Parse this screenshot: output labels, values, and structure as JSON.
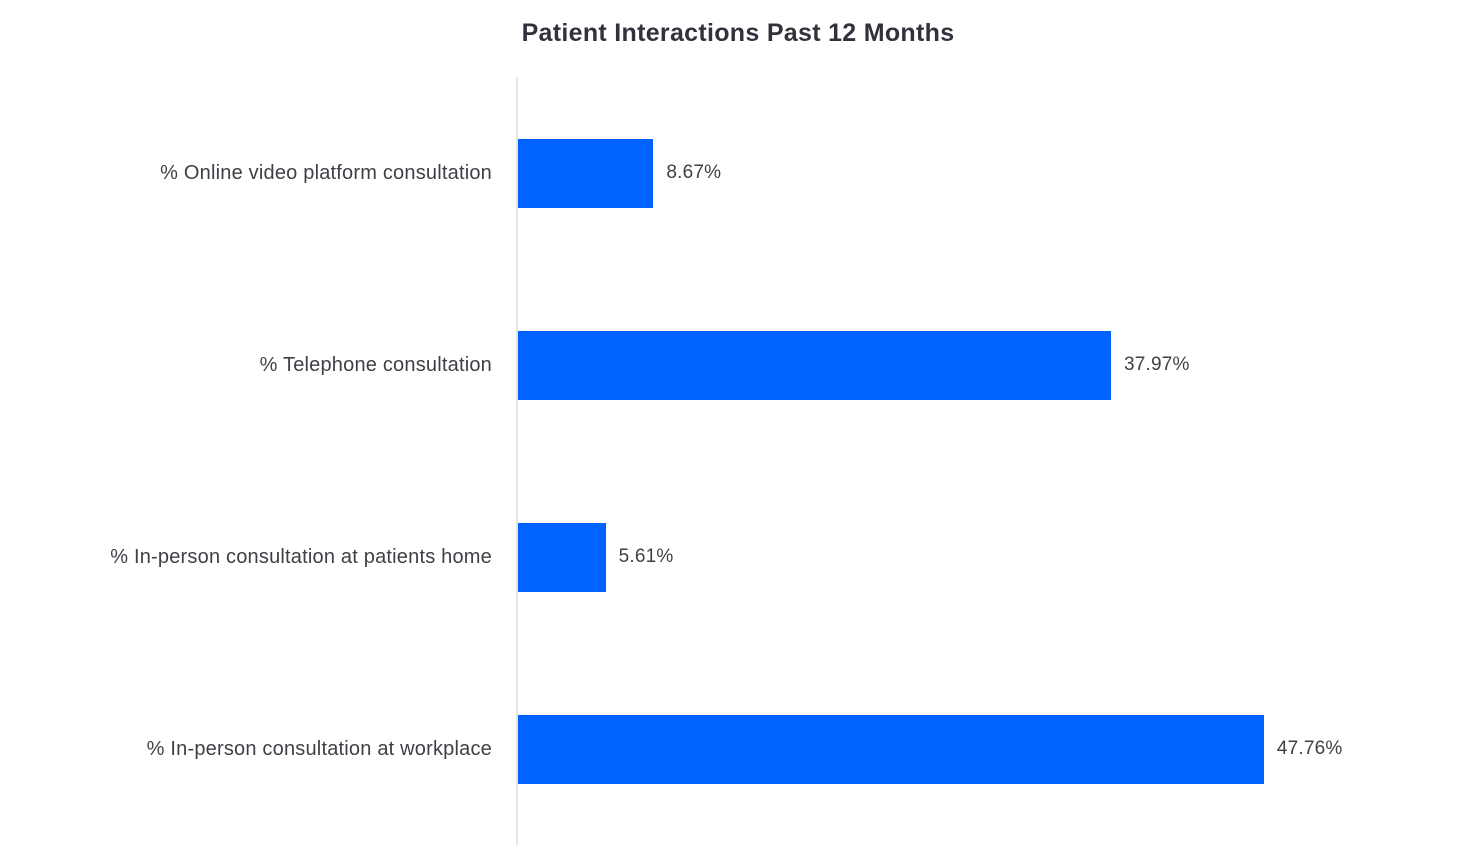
{
  "chart_data": {
    "type": "bar",
    "orientation": "horizontal",
    "title": "Patient Interactions Past 12 Months",
    "categories": [
      "% Online video platform consultation",
      "% Telephone consultation",
      "% In-person consultation at patients home",
      "% In-person consultation at workplace"
    ],
    "values": [
      8.67,
      37.97,
      5.61,
      47.76
    ],
    "value_labels": [
      "8.67%",
      "37.97%",
      "5.61%",
      "47.76%"
    ],
    "xlabel": "",
    "ylabel": "",
    "xlim": [
      0,
      60
    ],
    "grid": false,
    "legend_position": "none",
    "bar_color": "#0062ff",
    "axis_line_color": "#e4e4e4",
    "title_color": "#32323c",
    "label_color": "#3f3f46",
    "background_color": "#ffffff"
  }
}
